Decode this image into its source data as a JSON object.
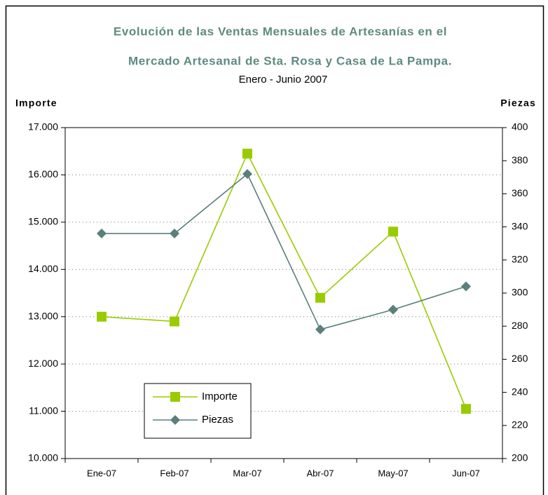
{
  "chart_data": {
    "type": "line",
    "title": [
      "Evolución de las Ventas Mensuales de Artesanías en el",
      "Mercado Artesanal de Sta. Rosa y Casa de La Pampa."
    ],
    "subtitle": "Enero - Junio 2007",
    "ylabel": "Importe",
    "y2label": "Piezas",
    "categories": [
      "Ene-07",
      "Feb-07",
      "Mar-07",
      "Abr-07",
      "May-07",
      "Jun-07"
    ],
    "series": [
      {
        "name": "Importe",
        "color": "#99cc00",
        "marker": "square",
        "values": [
          13000,
          12900,
          16450,
          13400,
          14800,
          11050
        ]
      },
      {
        "name": "Piezas",
        "color": "#5b7f7a",
        "marker": "diamond",
        "axis": "y2",
        "values": [
          336,
          336,
          372,
          278,
          290,
          304
        ]
      }
    ],
    "ylim": [
      10000,
      17000
    ],
    "yticks": [
      {
        "value": 10000,
        "label": "10.000"
      },
      {
        "value": 11000,
        "label": "11.000"
      },
      {
        "value": 12000,
        "label": "12.000"
      },
      {
        "value": 13000,
        "label": "13.000"
      },
      {
        "value": 14000,
        "label": "14.000"
      },
      {
        "value": 15000,
        "label": "15.000"
      },
      {
        "value": 16000,
        "label": "16.000"
      },
      {
        "value": 17000,
        "label": "17.000"
      }
    ],
    "y2lim": [
      200,
      400
    ],
    "y2ticks": [
      200,
      220,
      240,
      260,
      280,
      300,
      320,
      340,
      360,
      380,
      400
    ],
    "grid": true,
    "legend": "lower left"
  }
}
